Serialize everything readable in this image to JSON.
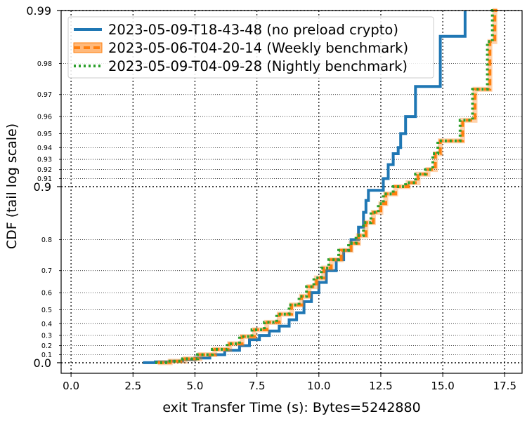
{
  "chart_data": {
    "type": "line",
    "title": "",
    "xlabel": "exit Transfer Time (s): Bytes=5242880",
    "ylabel": "CDF (tail log scale)",
    "xlim": [
      -0.4,
      18.2
    ],
    "y_scale": "tail log",
    "grid": true,
    "legend_position": "top-left",
    "x_ticks": [
      0.0,
      2.5,
      5.0,
      7.5,
      10.0,
      12.5,
      15.0,
      17.5
    ],
    "x_tick_labels": [
      "0.0",
      "2.5",
      "5.0",
      "7.5",
      "10.0",
      "12.5",
      "15.0",
      "17.5"
    ],
    "y_major_ticks": [
      0.0,
      0.9,
      0.99
    ],
    "y_major_labels": [
      "0.0",
      "0.9",
      "0.99"
    ],
    "y_minor_ticks": [
      0.1,
      0.2,
      0.3,
      0.4,
      0.5,
      0.6,
      0.7,
      0.8,
      0.91,
      0.92,
      0.93,
      0.94,
      0.95,
      0.96,
      0.97,
      0.98
    ],
    "y_minor_labels": [
      "0.1",
      "0.2",
      "0.3",
      "0.4",
      "0.5",
      "0.6",
      "0.7",
      "0.8",
      "0.91",
      "0.92",
      "0.93",
      "0.94",
      "0.95",
      "0.96",
      "0.97",
      "0.98"
    ],
    "series": [
      {
        "name": "2023-05-09-T18-43-48 (no preload crypto)",
        "color": "#1f77b4",
        "style": "solid",
        "x": [
          2.9,
          3.4,
          4.0,
          4.5,
          5.0,
          5.6,
          6.2,
          6.8,
          7.2,
          7.6,
          8.0,
          8.4,
          8.8,
          9.1,
          9.4,
          9.7,
          10.0,
          10.3,
          10.7,
          11.0,
          11.3,
          11.6,
          11.8,
          11.9,
          12.0,
          12.6,
          12.8,
          13.0,
          13.2,
          13.3,
          13.5,
          13.9,
          14.9,
          15.9,
          15.9
        ],
        "y": [
          0.0,
          0.01,
          0.02,
          0.04,
          0.06,
          0.1,
          0.15,
          0.2,
          0.26,
          0.3,
          0.34,
          0.38,
          0.43,
          0.48,
          0.55,
          0.6,
          0.65,
          0.7,
          0.74,
          0.77,
          0.8,
          0.83,
          0.86,
          0.88,
          0.895,
          0.91,
          0.925,
          0.935,
          0.94,
          0.95,
          0.96,
          0.973,
          0.986,
          0.99,
          0.99
        ]
      },
      {
        "name": "2023-05-06-T04-20-14 (Weekly benchmark)",
        "color": "#ff7f0e",
        "style": "dashed",
        "x": [
          3.5,
          4.0,
          4.6,
          5.2,
          5.8,
          6.4,
          6.9,
          7.4,
          7.9,
          8.4,
          8.9,
          9.3,
          9.6,
          9.9,
          10.2,
          10.5,
          10.9,
          11.3,
          11.6,
          11.9,
          12.2,
          12.5,
          12.7,
          13.1,
          13.6,
          14.0,
          14.4,
          14.7,
          14.9,
          15.8,
          16.3,
          16.9,
          17.1,
          17.2
        ],
        "y": [
          0.0,
          0.02,
          0.05,
          0.1,
          0.16,
          0.22,
          0.29,
          0.35,
          0.41,
          0.47,
          0.53,
          0.58,
          0.63,
          0.67,
          0.71,
          0.74,
          0.77,
          0.79,
          0.81,
          0.84,
          0.86,
          0.875,
          0.89,
          0.9,
          0.905,
          0.915,
          0.92,
          0.935,
          0.945,
          0.958,
          0.972,
          0.985,
          0.99,
          0.99
        ]
      },
      {
        "name": "2023-05-09-T04-09-28 (Nightly benchmark)",
        "color": "#2ca02c",
        "style": "dotted",
        "x": [
          3.4,
          3.9,
          4.5,
          5.1,
          5.7,
          6.3,
          6.8,
          7.3,
          7.8,
          8.3,
          8.8,
          9.2,
          9.5,
          9.8,
          10.1,
          10.4,
          10.8,
          11.2,
          11.5,
          11.8,
          12.1,
          12.4,
          12.6,
          13.0,
          13.5,
          13.9,
          14.3,
          14.6,
          14.8,
          15.7,
          16.2,
          16.8,
          17.0,
          17.1
        ],
        "y": [
          0.0,
          0.02,
          0.05,
          0.1,
          0.16,
          0.22,
          0.29,
          0.35,
          0.41,
          0.47,
          0.53,
          0.58,
          0.63,
          0.67,
          0.71,
          0.74,
          0.77,
          0.79,
          0.81,
          0.84,
          0.86,
          0.875,
          0.89,
          0.9,
          0.905,
          0.915,
          0.92,
          0.935,
          0.945,
          0.958,
          0.972,
          0.985,
          0.99,
          0.99
        ]
      }
    ]
  }
}
